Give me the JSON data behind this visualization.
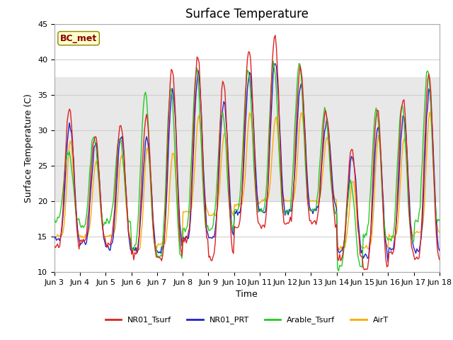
{
  "title": "Surface Temperature",
  "ylabel": "Surface Temperature (C)",
  "xlabel": "Time",
  "annotation_text": "BC_met",
  "ylim": [
    10,
    45
  ],
  "bg_band_lower": 20,
  "bg_band_upper": 37.5,
  "bg_color": "#e8e8e8",
  "grid_color": "#d0d0d0",
  "series_colors": {
    "NR01_Tsurf": "#dd2222",
    "NR01_PRT": "#2222cc",
    "Arable_Tsurf": "#22cc22",
    "AirT": "#ffaa00"
  },
  "legend_labels": [
    "NR01_Tsurf",
    "NR01_PRT",
    "Arable_Tsurf",
    "AirT"
  ],
  "xtick_labels": [
    "Jun 3",
    "Jun 4",
    "Jun 5",
    "Jun 6",
    "Jun 7",
    "Jun 8",
    "Jun 9",
    "Jun 10",
    "Jun 11",
    "Jun 12",
    "Jun 13",
    "Jun 14",
    "Jun 15",
    "Jun 16",
    "Jun 17",
    "Jun 18"
  ],
  "title_fontsize": 12,
  "axis_fontsize": 9,
  "tick_fontsize": 8,
  "annotation_fontsize": 9,
  "line_width": 1.0
}
